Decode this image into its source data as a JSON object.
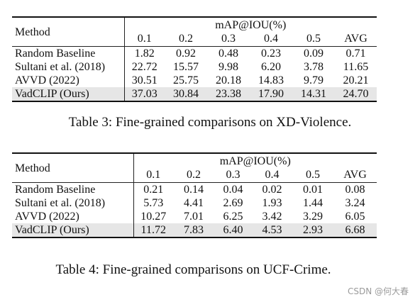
{
  "tables": [
    {
      "header_method": "Method",
      "group_header": "mAP@IOU(%)",
      "columns": [
        "0.1",
        "0.2",
        "0.3",
        "0.4",
        "0.5",
        "AVG"
      ],
      "rows": [
        {
          "method": "Random Baseline",
          "values": [
            "1.82",
            "0.92",
            "0.48",
            "0.23",
            "0.09",
            "0.71"
          ],
          "bold": [
            false,
            false,
            false,
            false,
            false,
            false
          ]
        },
        {
          "method": "Sultani et al. (2018)",
          "values": [
            "22.72",
            "15.57",
            "9.98",
            "6.20",
            "3.78",
            "11.65"
          ],
          "bold": [
            false,
            false,
            false,
            false,
            false,
            false
          ]
        },
        {
          "method": "AVVD (2022)",
          "values": [
            "30.51",
            "25.75",
            "20.18",
            "14.83",
            "9.79",
            "20.21"
          ],
          "bold": [
            false,
            false,
            false,
            false,
            false,
            false
          ]
        },
        {
          "method": "VadCLIP (Ours)",
          "values": [
            "37.03",
            "30.84",
            "23.38",
            "17.90",
            "14.31",
            "24.70"
          ],
          "bold": [
            true,
            true,
            true,
            true,
            true,
            true
          ],
          "highlight": true
        }
      ],
      "caption": "Table 3: Fine-grained comparisons on XD-Violence."
    },
    {
      "header_method": "Method",
      "group_header": "mAP@IOU(%)",
      "columns": [
        "0.1",
        "0.2",
        "0.3",
        "0.4",
        "0.5",
        "AVG"
      ],
      "rows": [
        {
          "method": "Random Baseline",
          "values": [
            "0.21",
            "0.14",
            "0.04",
            "0.02",
            "0.01",
            "0.08"
          ],
          "bold": [
            false,
            false,
            false,
            false,
            false,
            false
          ]
        },
        {
          "method": "Sultani et al. (2018)",
          "values": [
            "5.73",
            "4.41",
            "2.69",
            "1.93",
            "1.44",
            "3.24"
          ],
          "bold": [
            false,
            false,
            false,
            false,
            false,
            false
          ]
        },
        {
          "method": "AVVD (2022)",
          "values": [
            "10.27",
            "7.01",
            "6.25",
            "3.42",
            "3.29",
            "6.05"
          ],
          "bold": [
            false,
            false,
            false,
            false,
            true,
            false
          ]
        },
        {
          "method": "VadCLIP (Ours)",
          "values": [
            "11.72",
            "7.83",
            "6.40",
            "4.53",
            "2.93",
            "6.68"
          ],
          "bold": [
            true,
            true,
            true,
            true,
            false,
            true
          ],
          "highlight": true
        }
      ],
      "caption": "Table 4: Fine-grained comparisons on UCF-Crime."
    }
  ],
  "watermark": "CSDN @何大春"
}
